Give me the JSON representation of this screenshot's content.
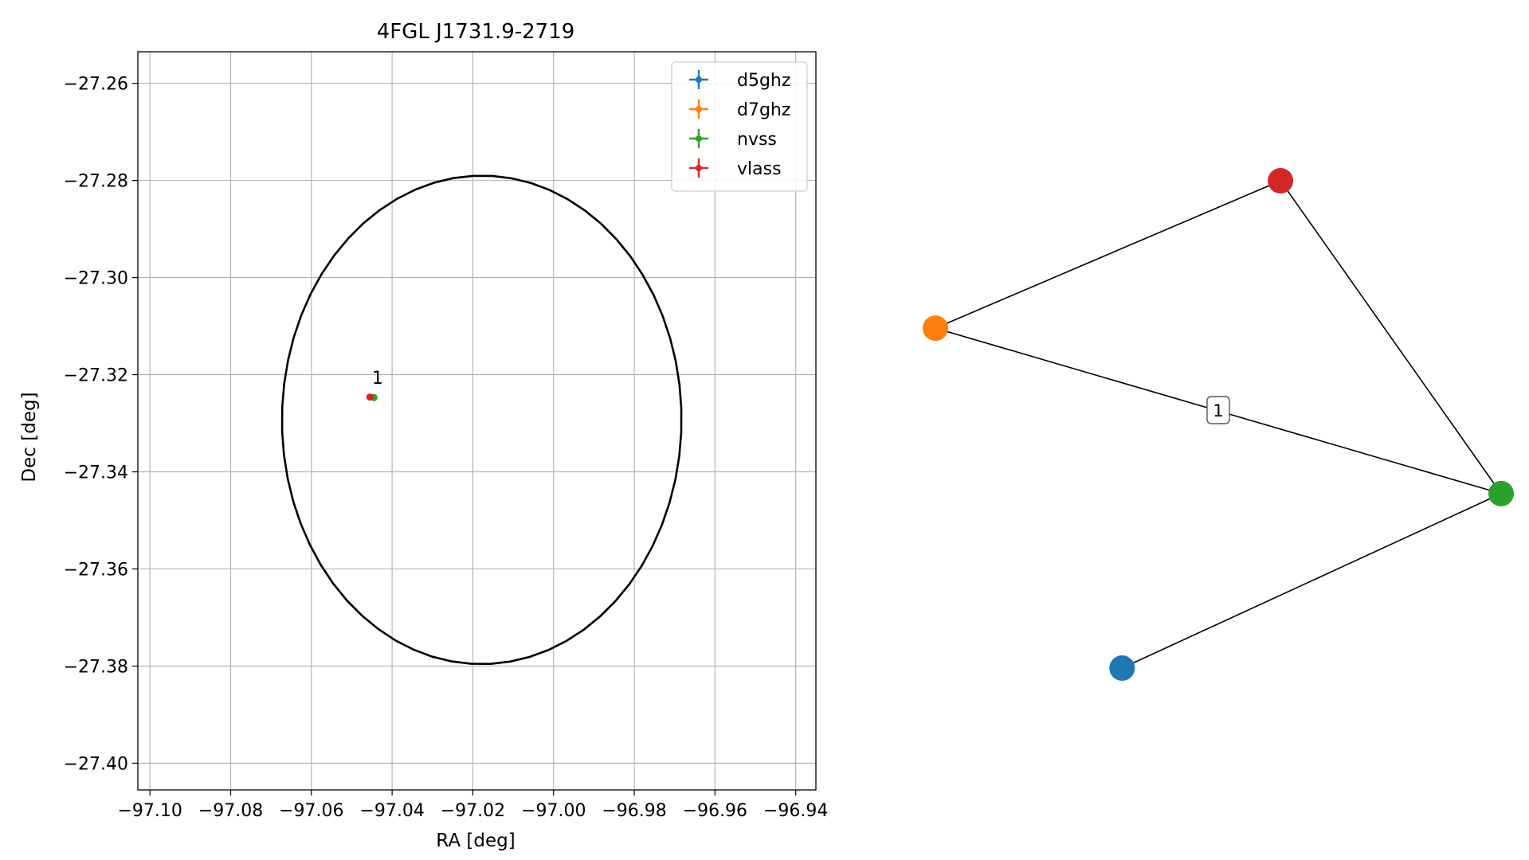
{
  "chart_data": [
    {
      "type": "scatter",
      "title": "4FGL J1731.9-2719",
      "xlabel": "RA [deg]",
      "ylabel": "Dec [deg]",
      "xlim": [
        -97.103,
        -96.935
      ],
      "ylim": [
        -27.4055,
        -27.2535
      ],
      "xticks": [
        -97.1,
        -97.08,
        -97.06,
        -97.04,
        -97.02,
        -97.0,
        -96.98,
        -96.96,
        -96.94
      ],
      "xtick_labels": [
        "−97.10",
        "−97.08",
        "−97.06",
        "−97.04",
        "−97.02",
        "−97.00",
        "−96.98",
        "−96.96",
        "−96.94"
      ],
      "yticks": [
        -27.26,
        -27.28,
        -27.3,
        -27.32,
        -27.34,
        -27.36,
        -27.38,
        -27.4
      ],
      "ytick_labels": [
        "−27.26",
        "−27.28",
        "−27.30",
        "−27.32",
        "−27.34",
        "−27.36",
        "−27.38",
        "−27.40"
      ],
      "grid": true,
      "legend_position": "top-right",
      "series": [
        {
          "name": "d5ghz",
          "color": "#1f77b4",
          "points": []
        },
        {
          "name": "d7ghz",
          "color": "#ff7f0e",
          "points": []
        },
        {
          "name": "nvss",
          "color": "#2ca02c",
          "points": [
            [
              -97.0445,
              -27.3247
            ]
          ]
        },
        {
          "name": "vlass",
          "color": "#d62728",
          "points": [
            [
              -97.0455,
              -27.3246
            ]
          ]
        }
      ],
      "ellipse": {
        "center": [
          -97.0178,
          -27.3293
        ],
        "semi_axis_ra": 0.0495,
        "semi_axis_dec": 0.0503,
        "rotation_deg": -3,
        "color": "#000000"
      },
      "annotations": [
        {
          "text": "1",
          "x": -97.0436,
          "y": -27.3219
        }
      ]
    },
    {
      "type": "network",
      "nodes": [
        {
          "id": "d5ghz",
          "color": "#1f77b4",
          "pos": [
            -0.1,
            -1.0
          ]
        },
        {
          "id": "d7ghz",
          "color": "#ff7f0e",
          "pos": [
            -0.43,
            0.13
          ]
        },
        {
          "id": "nvss",
          "color": "#2ca02c",
          "pos": [
            0.57,
            -0.42
          ]
        },
        {
          "id": "vlass",
          "color": "#d62728",
          "pos": [
            0.18,
            0.62
          ]
        }
      ],
      "edges": [
        {
          "source": "d7ghz",
          "target": "vlass",
          "label": ""
        },
        {
          "source": "vlass",
          "target": "nvss",
          "label": ""
        },
        {
          "source": "d7ghz",
          "target": "nvss",
          "label": "1"
        },
        {
          "source": "nvss",
          "target": "d5ghz",
          "label": ""
        }
      ]
    }
  ]
}
